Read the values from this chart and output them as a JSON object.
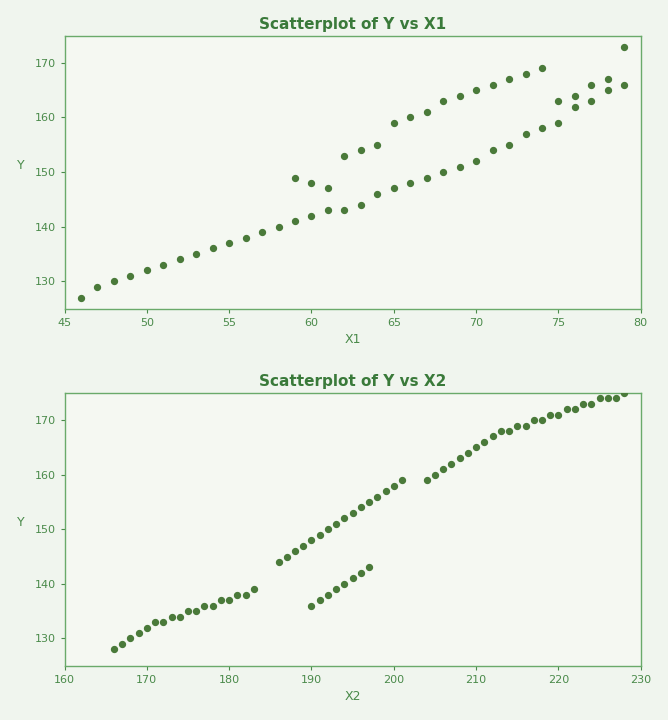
{
  "title1": "Scatterplot of Y vs X1",
  "title2": "Scatterplot of Y vs X2",
  "xlabel1": "X1",
  "xlabel2": "X2",
  "ylabel": "Y",
  "dot_color": "#4a7a3a",
  "bg_color": "#f0f5ee",
  "plot_bg": "#f5f8f2",
  "border_color": "#6aaa6a",
  "title_color": "#3a7a3a",
  "tick_color": "#4a8a4a",
  "x1_band1": [
    46,
    47,
    48,
    49,
    50,
    51,
    52,
    53,
    54,
    55,
    56,
    57,
    58,
    59,
    60,
    61,
    62,
    63,
    64,
    65,
    66,
    67,
    68,
    69,
    70,
    71,
    72,
    73,
    74,
    75,
    76,
    77,
    78,
    79
  ],
  "y1_band1": [
    127,
    129,
    130,
    131,
    132,
    133,
    134,
    135,
    136,
    137,
    138,
    139,
    140,
    141,
    142,
    143,
    143,
    144,
    146,
    147,
    148,
    149,
    150,
    151,
    152,
    154,
    155,
    157,
    158,
    159,
    162,
    163,
    165,
    166
  ],
  "x1_band2": [
    59,
    60,
    61,
    62,
    63,
    64,
    65,
    66,
    67,
    68,
    69,
    70,
    71,
    72,
    73,
    74,
    75,
    76,
    77,
    78,
    79
  ],
  "y1_band2": [
    149,
    148,
    147,
    153,
    154,
    155,
    159,
    160,
    161,
    163,
    164,
    165,
    166,
    167,
    168,
    169,
    163,
    164,
    166,
    167,
    173
  ],
  "x2_seg1": [
    166,
    167,
    168,
    169,
    170,
    171,
    172,
    173,
    174,
    175,
    176,
    177,
    178,
    179,
    180,
    181,
    182,
    183
  ],
  "y2_seg1": [
    128,
    129,
    130,
    131,
    132,
    133,
    133,
    134,
    134,
    135,
    135,
    136,
    136,
    137,
    137,
    138,
    138,
    139
  ],
  "x2_seg2": [
    186,
    187,
    188,
    189,
    190,
    191,
    192,
    193,
    194,
    195,
    196,
    197,
    198,
    199,
    200,
    201
  ],
  "y2_seg2": [
    144,
    145,
    146,
    147,
    148,
    149,
    150,
    151,
    152,
    153,
    154,
    155,
    156,
    157,
    158,
    159
  ],
  "x2_seg3": [
    190,
    191,
    192,
    193,
    194,
    195,
    196,
    197
  ],
  "y2_seg3": [
    136,
    137,
    138,
    139,
    140,
    141,
    142,
    143
  ],
  "x2_seg4": [
    204,
    205,
    206,
    207,
    208,
    209,
    210,
    211,
    212,
    213,
    214,
    215,
    216,
    217,
    218,
    219,
    220,
    221,
    222,
    223,
    224,
    225,
    226,
    227,
    228
  ],
  "y2_seg4": [
    159,
    160,
    161,
    162,
    163,
    164,
    165,
    166,
    167,
    168,
    168,
    169,
    169,
    170,
    170,
    171,
    171,
    172,
    172,
    173,
    173,
    174,
    174,
    174,
    175
  ],
  "x1lim": [
    45,
    80
  ],
  "y1lim": [
    125,
    175
  ],
  "x2lim": [
    160,
    230
  ],
  "y2lim": [
    125,
    175
  ],
  "x1ticks": [
    45,
    50,
    55,
    60,
    65,
    70,
    75,
    80
  ],
  "y1ticks": [
    130,
    140,
    150,
    160,
    170
  ],
  "x2ticks": [
    160,
    170,
    180,
    190,
    200,
    210,
    220,
    230
  ],
  "y2ticks": [
    130,
    140,
    150,
    160,
    170
  ],
  "marker_size": 18,
  "title_fontsize": 11,
  "label_fontsize": 9,
  "tick_fontsize": 8
}
